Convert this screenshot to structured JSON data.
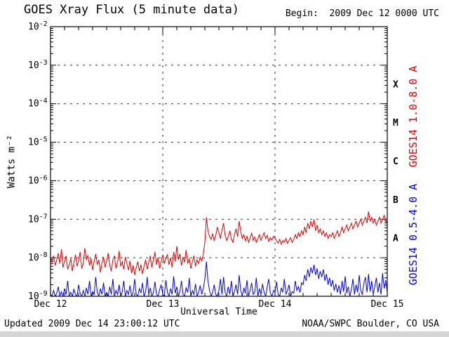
{
  "header": {
    "title": "GOES Xray Flux (5 minute data)",
    "begin": "Begin:  2009 Dec 12 0000 UTC"
  },
  "footer": {
    "updated": "Updated 2009 Dec 14 23:00:12 UTC",
    "source": "NOAA/SWPC Boulder, CO USA"
  },
  "chart_data": {
    "type": "line",
    "title": "GOES Xray Flux (5 minute data)",
    "xlabel": "Universal Time",
    "ylabel": "Watts m⁻²",
    "x_range_hours": [
      0,
      72
    ],
    "interval_minutes": 20,
    "x_minor_tick_hours": 3,
    "x_tick_labels": [
      {
        "hour": 0,
        "label": "Dec 12"
      },
      {
        "hour": 24,
        "label": "Dec 13"
      },
      {
        "hour": 48,
        "label": "Dec 14"
      },
      {
        "hour": 72,
        "label": "Dec 15"
      }
    ],
    "y_tick_exponents": [
      -2,
      -3,
      -4,
      -5,
      -6,
      -7,
      -8,
      -9
    ],
    "ylim_log": [
      -9,
      -2
    ],
    "grid": {
      "h_decades": [
        -3,
        -4,
        -5,
        -6,
        -7,
        -8
      ],
      "v_day_hours": [
        24,
        48
      ]
    },
    "flare_classes": [
      {
        "label": "X",
        "log": -3.5
      },
      {
        "label": "M",
        "log": -4.5
      },
      {
        "label": "C",
        "log": -5.5
      },
      {
        "label": "B",
        "log": -6.5
      },
      {
        "label": "A",
        "log": -7.5
      }
    ],
    "series": [
      {
        "name": "GOES14 1.0-8.0 A",
        "color": "#dd0000",
        "log_values": [
          -8.0,
          -8.12,
          -7.95,
          -8.2,
          -8.05,
          -7.88,
          -8.15,
          -7.78,
          -8.25,
          -8.1,
          -7.95,
          -8.3,
          -8.18,
          -8.02,
          -8.35,
          -8.12,
          -7.92,
          -8.22,
          -8.08,
          -7.85,
          -8.28,
          -8.15,
          -7.75,
          -8.05,
          -7.95,
          -8.2,
          -8.02,
          -8.32,
          -8.1,
          -7.9,
          -8.18,
          -8.05,
          -8.38,
          -8.15,
          -7.98,
          -8.25,
          -8.08,
          -7.88,
          -8.2,
          -8.35,
          -8.05,
          -7.95,
          -8.28,
          -8.12,
          -7.82,
          -8.22,
          -8.1,
          -8.3,
          -7.98,
          -8.15,
          -8.32,
          -8.08,
          -8.4,
          -8.2,
          -8.45,
          -8.25,
          -8.1,
          -8.35,
          -8.18,
          -8.42,
          -8.22,
          -8.05,
          -8.3,
          -8.12,
          -7.95,
          -8.25,
          -8.05,
          -7.85,
          -8.18,
          -8.0,
          -8.28,
          -8.08,
          -7.92,
          -8.15,
          -8.02,
          -7.92,
          -8.18,
          -8.0,
          -8.25,
          -7.85,
          -8.1,
          -7.7,
          -8.05,
          -7.9,
          -8.2,
          -7.98,
          -8.12,
          -7.8,
          -8.15,
          -8.02,
          -8.28,
          -8.1,
          -7.95,
          -8.22,
          -8.05,
          -8.15,
          -7.98,
          -8.08,
          -7.9,
          -7.6,
          -6.95,
          -7.3,
          -7.45,
          -7.52,
          -7.38,
          -7.55,
          -7.42,
          -7.2,
          -7.35,
          -7.5,
          -7.28,
          -7.1,
          -7.42,
          -7.55,
          -7.45,
          -7.3,
          -7.52,
          -7.6,
          -7.4,
          -7.25,
          -7.45,
          -7.05,
          -7.32,
          -7.5,
          -7.4,
          -7.56,
          -7.44,
          -7.6,
          -7.5,
          -7.35,
          -7.55,
          -7.46,
          -7.6,
          -7.5,
          -7.4,
          -7.55,
          -7.45,
          -7.35,
          -7.5,
          -7.42,
          -7.58,
          -7.48,
          -7.54,
          -7.44,
          -7.5,
          -7.56,
          -7.62,
          -7.52,
          -7.65,
          -7.55,
          -7.6,
          -7.5,
          -7.63,
          -7.55,
          -7.48,
          -7.6,
          -7.52,
          -7.4,
          -7.5,
          -7.35,
          -7.45,
          -7.3,
          -7.4,
          -7.2,
          -7.35,
          -7.1,
          -7.25,
          -7.05,
          -7.2,
          -7.0,
          -7.3,
          -7.15,
          -7.35,
          -7.25,
          -7.4,
          -7.3,
          -7.45,
          -7.35,
          -7.5,
          -7.4,
          -7.45,
          -7.35,
          -7.5,
          -7.4,
          -7.3,
          -7.45,
          -7.35,
          -7.2,
          -7.35,
          -7.25,
          -7.15,
          -7.3,
          -7.2,
          -7.1,
          -7.25,
          -7.15,
          -7.05,
          -7.2,
          -7.1,
          -7.0,
          -7.15,
          -7.05,
          -6.95,
          -7.1,
          -6.8,
          -7.05,
          -6.95,
          -7.1,
          -7.0,
          -7.15,
          -7.05,
          -6.95,
          -7.1,
          -7.0,
          -6.9,
          -7.05,
          -7.1
        ]
      },
      {
        "name": "GOES14 0.5-4.0 A",
        "color": "#0000dd",
        "log_values": [
          -8.95,
          -9.0,
          -8.85,
          -9.0,
          -8.92,
          -8.75,
          -9.0,
          -8.88,
          -9.0,
          -8.8,
          -8.95,
          -8.6,
          -9.0,
          -8.9,
          -9.0,
          -8.82,
          -8.95,
          -9.0,
          -8.7,
          -8.92,
          -9.0,
          -8.85,
          -9.0,
          -8.78,
          -8.95,
          -8.6,
          -9.0,
          -8.88,
          -8.95,
          -8.5,
          -8.9,
          -9.0,
          -8.8,
          -8.95,
          -8.65,
          -9.0,
          -8.9,
          -9.0,
          -8.75,
          -8.95,
          -8.55,
          -9.0,
          -8.85,
          -8.95,
          -8.7,
          -9.0,
          -8.9,
          -8.6,
          -9.0,
          -8.85,
          -8.95,
          -8.72,
          -9.0,
          -8.9,
          -8.55,
          -8.95,
          -9.0,
          -8.8,
          -8.92,
          -8.65,
          -9.0,
          -8.88,
          -8.5,
          -8.95,
          -8.78,
          -9.0,
          -8.9,
          -8.62,
          -8.95,
          -9.0,
          -8.82,
          -8.7,
          -8.95,
          -9.0,
          -8.58,
          -8.9,
          -9.0,
          -8.8,
          -8.95,
          -8.48,
          -8.92,
          -8.75,
          -9.0,
          -8.88,
          -8.6,
          -8.95,
          -9.0,
          -8.78,
          -8.9,
          -8.52,
          -9.0,
          -8.85,
          -8.95,
          -8.68,
          -9.0,
          -8.9,
          -8.72,
          -8.95,
          -8.8,
          -8.55,
          -8.1,
          -8.6,
          -8.85,
          -9.0,
          -8.9,
          -8.7,
          -8.95,
          -9.0,
          -8.85,
          -8.55,
          -8.95,
          -8.5,
          -8.9,
          -9.0,
          -8.75,
          -8.95,
          -8.6,
          -9.0,
          -8.88,
          -8.7,
          -8.95,
          -8.45,
          -8.85,
          -9.0,
          -8.78,
          -8.92,
          -8.58,
          -9.0,
          -8.85,
          -8.65,
          -8.95,
          -8.9,
          -8.52,
          -9.0,
          -8.8,
          -8.95,
          -8.68,
          -8.9,
          -9.0,
          -8.75,
          -8.55,
          -8.92,
          -9.0,
          -8.85,
          -8.9,
          -8.62,
          -8.95,
          -9.0,
          -8.78,
          -8.9,
          -8.55,
          -8.95,
          -8.85,
          -8.7,
          -9.0,
          -8.88,
          -8.92,
          -8.6,
          -8.85,
          -8.75,
          -8.9,
          -8.65,
          -8.7,
          -8.45,
          -8.6,
          -8.3,
          -8.5,
          -8.25,
          -8.4,
          -8.18,
          -8.45,
          -8.28,
          -8.55,
          -8.35,
          -8.5,
          -8.3,
          -8.6,
          -8.42,
          -8.7,
          -8.52,
          -8.75,
          -8.58,
          -8.85,
          -8.68,
          -8.9,
          -8.72,
          -8.95,
          -8.6,
          -8.88,
          -8.48,
          -8.92,
          -8.75,
          -9.0,
          -8.82,
          -8.55,
          -8.95,
          -8.7,
          -8.9,
          -8.45,
          -8.85,
          -8.95,
          -8.65,
          -8.5,
          -8.9,
          -8.42,
          -8.88,
          -8.6,
          -8.95,
          -8.75,
          -8.52,
          -8.9,
          -8.65,
          -8.95,
          -8.4,
          -8.8,
          -8.58,
          -8.9
        ]
      }
    ]
  }
}
